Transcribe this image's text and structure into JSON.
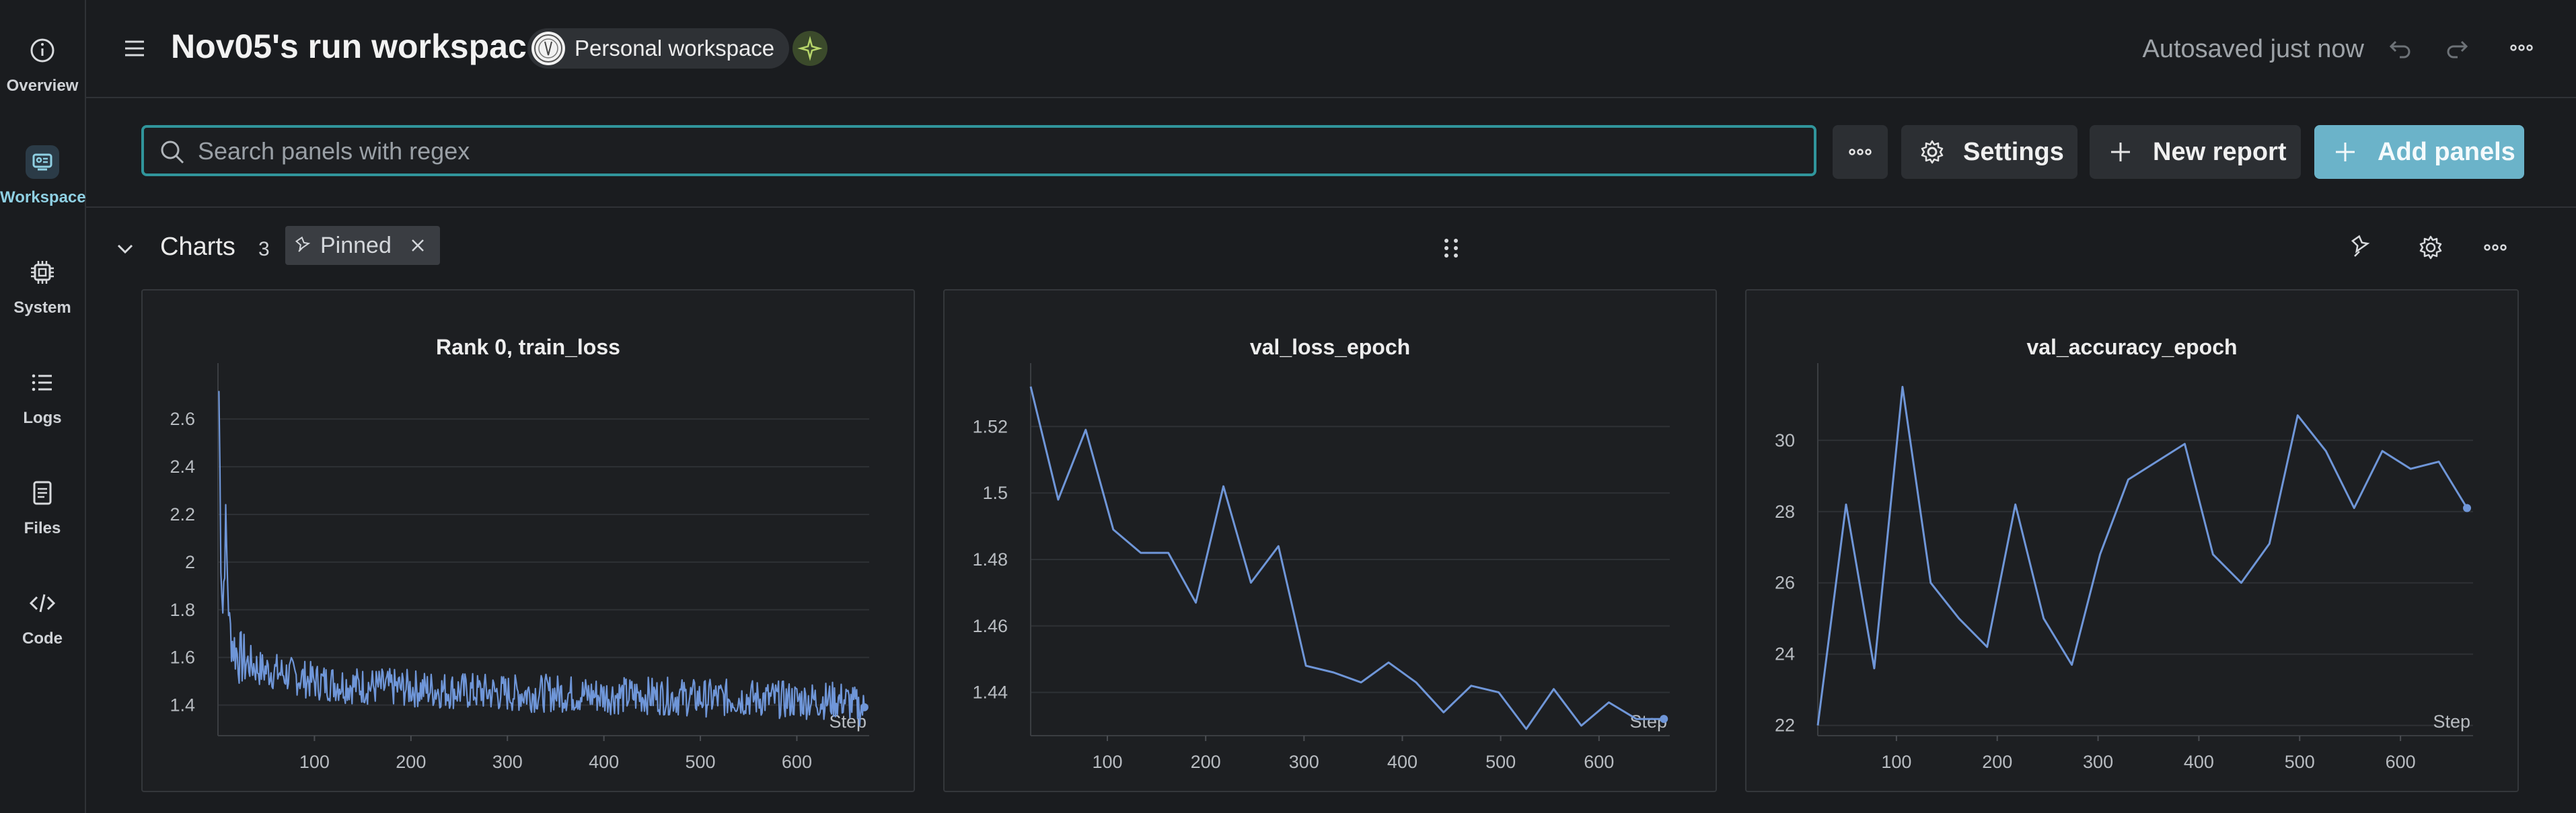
{
  "nav": {
    "items": [
      {
        "label": "Overview",
        "icon": "info-icon"
      },
      {
        "label": "Workspace",
        "icon": "workspace-icon"
      },
      {
        "label": "System",
        "icon": "chip-icon"
      },
      {
        "label": "Logs",
        "icon": "list-icon"
      },
      {
        "label": "Files",
        "icon": "file-icon"
      },
      {
        "label": "Code",
        "icon": "code-icon"
      }
    ],
    "active": "Workspace"
  },
  "header": {
    "title": "Nov05's run workspace",
    "workspace_chip": "Personal workspace",
    "autosave": "Autosaved just now"
  },
  "toolbar": {
    "search_placeholder": "Search panels with regex",
    "settings_label": "Settings",
    "new_report_label": "New report",
    "add_panels_label": "Add panels"
  },
  "section": {
    "title": "Charts",
    "count": "3",
    "pinned_label": "Pinned"
  },
  "colors": {
    "accent": "#30959b",
    "add_button": "#6bb3c9",
    "series": "#6f96d8",
    "background": "#1a1c1f"
  },
  "chart_data": [
    {
      "type": "line",
      "title": "Rank 0, train_loss",
      "xlabel": "Step",
      "ylabel": "",
      "xlim": [
        0,
        675
      ],
      "ylim": [
        1.3,
        2.75
      ],
      "x_ticks": [
        "100",
        "200",
        "300",
        "400",
        "500",
        "600"
      ],
      "y_ticks": [
        "1.4",
        "1.6",
        "1.8",
        "2",
        "2.2",
        "2.4",
        "2.6"
      ],
      "grid": true,
      "series": [
        {
          "noisy": true,
          "x": [
            1,
            3,
            5,
            8,
            12,
            16,
            22,
            30,
            45,
            60,
            80,
            100,
            150,
            200,
            250,
            300,
            350,
            400,
            450,
            500,
            550,
            600,
            650,
            670
          ],
          "y": [
            2.72,
            2.05,
            1.8,
            2.15,
            1.72,
            1.65,
            1.6,
            1.58,
            1.55,
            1.54,
            1.52,
            1.5,
            1.48,
            1.47,
            1.46,
            1.45,
            1.45,
            1.44,
            1.44,
            1.43,
            1.43,
            1.42,
            1.42,
            1.38
          ]
        }
      ]
    },
    {
      "type": "line",
      "title": "val_loss_epoch",
      "xlabel": "Step",
      "ylabel": "",
      "xlim": [
        22,
        672
      ],
      "ylim": [
        1.429,
        1.533
      ],
      "x_ticks": [
        "100",
        "200",
        "300",
        "400",
        "500",
        "600"
      ],
      "y_ticks": [
        "1.44",
        "1.46",
        "1.48",
        "1.5",
        "1.52"
      ],
      "grid": true,
      "series": [
        {
          "x": [
            22,
            50,
            78,
            106,
            134,
            162,
            190,
            218,
            246,
            274,
            302,
            330,
            358,
            386,
            414,
            442,
            470,
            498,
            526,
            554,
            582,
            610,
            638,
            666
          ],
          "y": [
            1.532,
            1.498,
            1.519,
            1.489,
            1.482,
            1.482,
            1.467,
            1.502,
            1.473,
            1.484,
            1.448,
            1.446,
            1.443,
            1.449,
            1.443,
            1.434,
            1.442,
            1.44,
            1.429,
            1.441,
            1.43,
            1.437,
            1.432,
            1.432
          ]
        }
      ]
    },
    {
      "type": "line",
      "title": "val_accuracy_epoch",
      "xlabel": "Step",
      "ylabel": "",
      "xlim": [
        22,
        672
      ],
      "ylim": [
        21.9,
        31.6
      ],
      "x_ticks": [
        "100",
        "200",
        "300",
        "400",
        "500",
        "600"
      ],
      "y_ticks": [
        "22",
        "24",
        "26",
        "28",
        "30"
      ],
      "grid": true,
      "series": [
        {
          "x": [
            22,
            50,
            78,
            106,
            134,
            162,
            190,
            218,
            246,
            274,
            302,
            330,
            358,
            386,
            414,
            442,
            470,
            498,
            526,
            554,
            582,
            610,
            638,
            666
          ],
          "y": [
            22.0,
            28.2,
            23.6,
            31.5,
            26.0,
            25.0,
            24.2,
            28.2,
            25.0,
            23.7,
            26.8,
            28.9,
            29.4,
            29.9,
            26.8,
            26.0,
            27.1,
            30.7,
            29.7,
            28.1,
            29.7,
            29.2,
            29.4,
            28.1
          ]
        }
      ]
    }
  ]
}
